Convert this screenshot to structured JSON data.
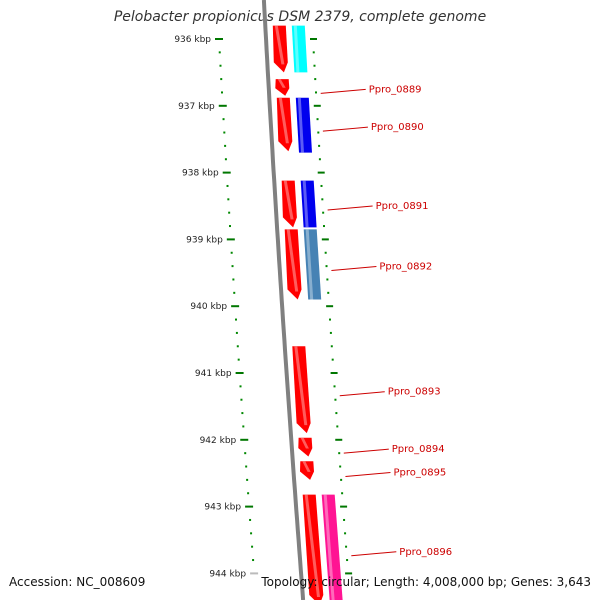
{
  "title": "Pelobacter propionicus DSM 2379, complete genome",
  "footer": {
    "accession": "Accession: NC_008609",
    "summary": "Topology: circular; Length: 4,008,000 bp; Genes: 3,643"
  },
  "tick_unit": "kbp",
  "ticks": [
    936,
    937,
    938,
    939,
    940,
    941,
    942,
    943,
    944
  ],
  "colors": {
    "backbone": "#808080",
    "tick_major": "#007700",
    "tick_minor": "#008800",
    "label_text": "#cc0000",
    "leader_line": "#cc0000"
  },
  "genes": [
    {
      "id": "ext-top",
      "label": "",
      "start": 935.8,
      "end": 936.5,
      "track": 0,
      "color": "#ff0000",
      "arrow": true
    },
    {
      "id": "ext-top-cyan",
      "label": "",
      "start": 935.8,
      "end": 936.5,
      "track": 1,
      "color": "#00ffff",
      "arrow": false
    },
    {
      "id": "ppro-0889",
      "label": "Ppro_0889",
      "start": 936.6,
      "end": 936.85,
      "track": 0,
      "color": "#ff0000",
      "arrow": true
    },
    {
      "id": "ppro-0890a",
      "label": "",
      "start": 936.88,
      "end": 937.68,
      "track": 0,
      "color": "#ff0000",
      "arrow": true
    },
    {
      "id": "ppro-0890",
      "label": "Ppro_0890",
      "start": 936.88,
      "end": 937.7,
      "track": 1,
      "color": "#0000ee",
      "arrow": false
    },
    {
      "id": "ppro-0891a",
      "label": "",
      "start": 938.12,
      "end": 938.82,
      "track": 0,
      "color": "#ff0000",
      "arrow": true
    },
    {
      "id": "ppro-0891",
      "label": "Ppro_0891",
      "start": 938.12,
      "end": 938.82,
      "track": 1,
      "color": "#0000ee",
      "arrow": false
    },
    {
      "id": "ppro-0892a",
      "label": "",
      "start": 938.85,
      "end": 939.9,
      "track": 0,
      "color": "#ff0000",
      "arrow": true
    },
    {
      "id": "ppro-0892",
      "label": "Ppro_0892",
      "start": 938.85,
      "end": 939.9,
      "track": 1,
      "color": "#4682b4",
      "arrow": false
    },
    {
      "id": "ppro-0893",
      "label": "Ppro_0893",
      "start": 940.6,
      "end": 941.9,
      "track": 0,
      "color": "#ff0000",
      "arrow": true
    },
    {
      "id": "ppro-0894",
      "label": "Ppro_0894",
      "start": 941.97,
      "end": 942.25,
      "track": 0,
      "color": "#ff0000",
      "arrow": true
    },
    {
      "id": "ppro-0895",
      "label": "Ppro_0895",
      "start": 942.32,
      "end": 942.6,
      "track": 0,
      "color": "#ff0000",
      "arrow": true
    },
    {
      "id": "ppro-0896a",
      "label": "",
      "start": 942.82,
      "end": 944.6,
      "track": 0,
      "color": "#ff0000",
      "arrow": true
    },
    {
      "id": "ppro-0896",
      "label": "Ppro_0896",
      "start": 942.82,
      "end": 944.6,
      "track": 1,
      "color": "#ff1493",
      "arrow": false
    }
  ]
}
